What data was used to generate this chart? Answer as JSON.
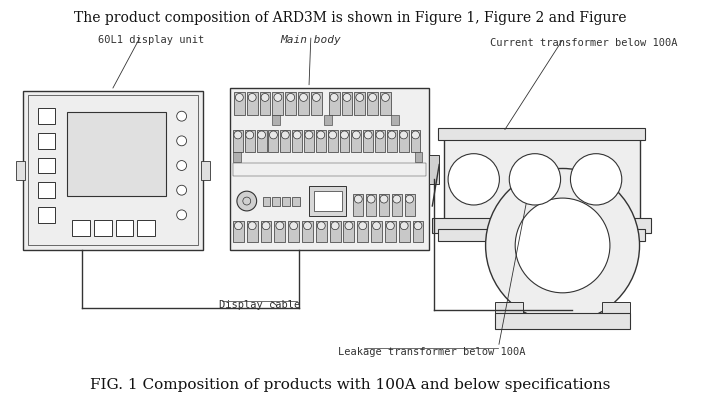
{
  "title": "The product composition of ARD3M is shown in Figure 1, Figure 2 and Figure",
  "caption": "FIG. 1 Composition of products with 100A and below specifications",
  "labels": {
    "display_unit": "60L1 display unit",
    "main_body": "Main body",
    "current_transformer": "Current transformer below 100A",
    "display_cable": "Display cable",
    "leakage_transformer": "Leakage transformer below 100A"
  },
  "bg_color": "#ffffff",
  "line_color": "#333333",
  "gray_light": "#d8d8d8",
  "gray_mid": "#bbbbbb",
  "title_fontsize": 10,
  "caption_fontsize": 11,
  "label_fontsize": 7.5
}
